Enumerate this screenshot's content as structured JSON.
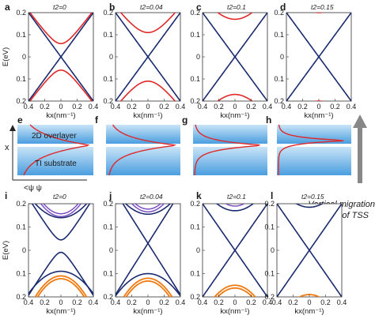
{
  "top_row": {
    "ylabel": "E(eV)",
    "xlabel": "kx(nm⁻¹)",
    "ytick_labels": [
      "0.2",
      "0.1",
      "0",
      "0.1",
      "0.2"
    ],
    "xtick_labels_first": [
      "0.4",
      "0.2",
      "0",
      "0.2",
      "0.4"
    ],
    "xtick_labels_other": [
      "0.4",
      "0.2",
      "0",
      "0.2",
      "0.4"
    ],
    "panels": [
      {
        "letter": "a",
        "t2": "t2=0"
      },
      {
        "letter": "b",
        "t2": "t2=0.04"
      },
      {
        "letter": "c",
        "t2": "t2=0.1"
      },
      {
        "letter": "d",
        "t2": "t2=0.15"
      }
    ]
  },
  "middle_row": {
    "x_axis_letter": "x",
    "psi_label": "<ψ ψ",
    "overlayer_label": "2D overlayer",
    "substrate_label": "TI substrate",
    "panels": [
      {
        "letter": "e"
      },
      {
        "letter": "f"
      },
      {
        "letter": "g"
      },
      {
        "letter": "h"
      }
    ],
    "migration_label_line1": "Vertical migration",
    "migration_label_line2": "of TSS"
  },
  "bottom_row": {
    "ylabel": "E(eV)",
    "xlabel": "kx(nm⁻¹)",
    "ytick_labels": [
      "0.2",
      "0.1",
      "0",
      "0.1",
      "0.2"
    ],
    "xtick_labels": [
      "0.4",
      "0.2",
      "0",
      "0.2",
      "0.4"
    ],
    "panels": [
      {
        "letter": "i",
        "t2": "t2=0"
      },
      {
        "letter": "j",
        "t2": "t2=0.04"
      },
      {
        "letter": "k",
        "t2": "t2=0.1"
      },
      {
        "letter": "l",
        "t2": "t2=0.15"
      }
    ]
  },
  "colors": {
    "dirac": "#1a2a6e",
    "gapped": "#e02828",
    "purple": "#7b4fc4",
    "orange": "#f07a10",
    "overlayer_top": "#c9e4f7",
    "overlayer_bottom": "#4a9ee0",
    "arrow": "#888888"
  }
}
